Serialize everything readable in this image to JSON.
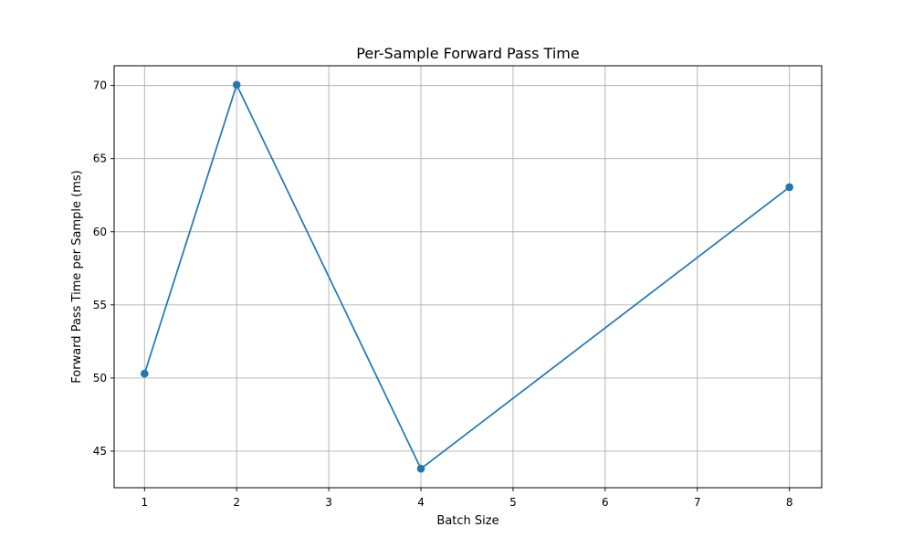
{
  "chart_data": {
    "type": "line",
    "title": "Per-Sample Forward Pass Time",
    "xlabel": "Batch Size",
    "ylabel": "Forward Pass Time per Sample (ms)",
    "x": [
      1,
      2,
      4,
      8
    ],
    "series": [
      {
        "values": [
          50.3,
          70.05,
          43.8,
          63.05
        ],
        "color": "#1f77b4",
        "marker": "circle"
      }
    ],
    "xlim": [
      0.67,
      8.35
    ],
    "ylim": [
      42.5,
      71.35
    ],
    "xticks": [
      1,
      2,
      3,
      4,
      5,
      6,
      7,
      8
    ],
    "yticks": [
      45,
      50,
      55,
      60,
      65,
      70
    ],
    "grid": true
  }
}
